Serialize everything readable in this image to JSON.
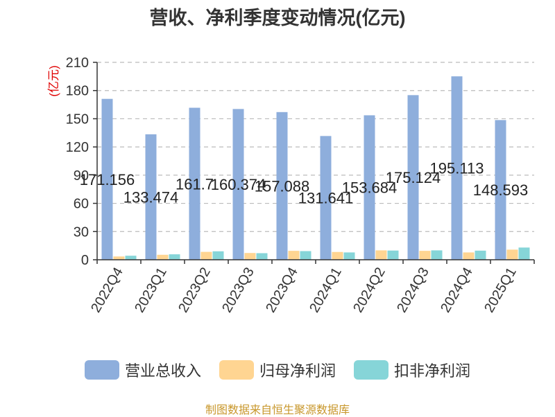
{
  "chart_data": {
    "type": "bar",
    "title": "营收、净利季度变动情况(亿元)",
    "ylabel": "(亿元)",
    "ylim": [
      0,
      210
    ],
    "yticks": [
      0,
      30,
      60,
      90,
      120,
      150,
      180,
      210
    ],
    "grid": true,
    "legend_position": "bottom",
    "categories": [
      "2022Q4",
      "2023Q1",
      "2023Q2",
      "2023Q3",
      "2023Q4",
      "2024Q1",
      "2024Q2",
      "2024Q3",
      "2024Q4",
      "2025Q1"
    ],
    "series": [
      {
        "name": "营业总收入",
        "color": "#8eaedc",
        "values": [
          171.156,
          133.474,
          161.7,
          160.374,
          157.088,
          131.641,
          153.684,
          175.124,
          195.113,
          148.593
        ],
        "data_labels": [
          "171.156",
          "133.474",
          "161.7",
          "160.374",
          "157.088",
          "131.641",
          "153.684",
          "175.124",
          "195.113",
          "148.593"
        ]
      },
      {
        "name": "归母净利润",
        "color": "#ffd592",
        "values": [
          3.5,
          5.3,
          8.4,
          7.2,
          9.5,
          8.3,
          10.0,
          9.5,
          7.8,
          10.8
        ]
      },
      {
        "name": "扣非净利润",
        "color": "#86d5d8",
        "values": [
          4.3,
          5.8,
          9.0,
          7.0,
          9.2,
          7.8,
          9.8,
          10.0,
          9.7,
          13.0
        ]
      }
    ]
  },
  "source_text": "制图数据来自恒生聚源数据库"
}
